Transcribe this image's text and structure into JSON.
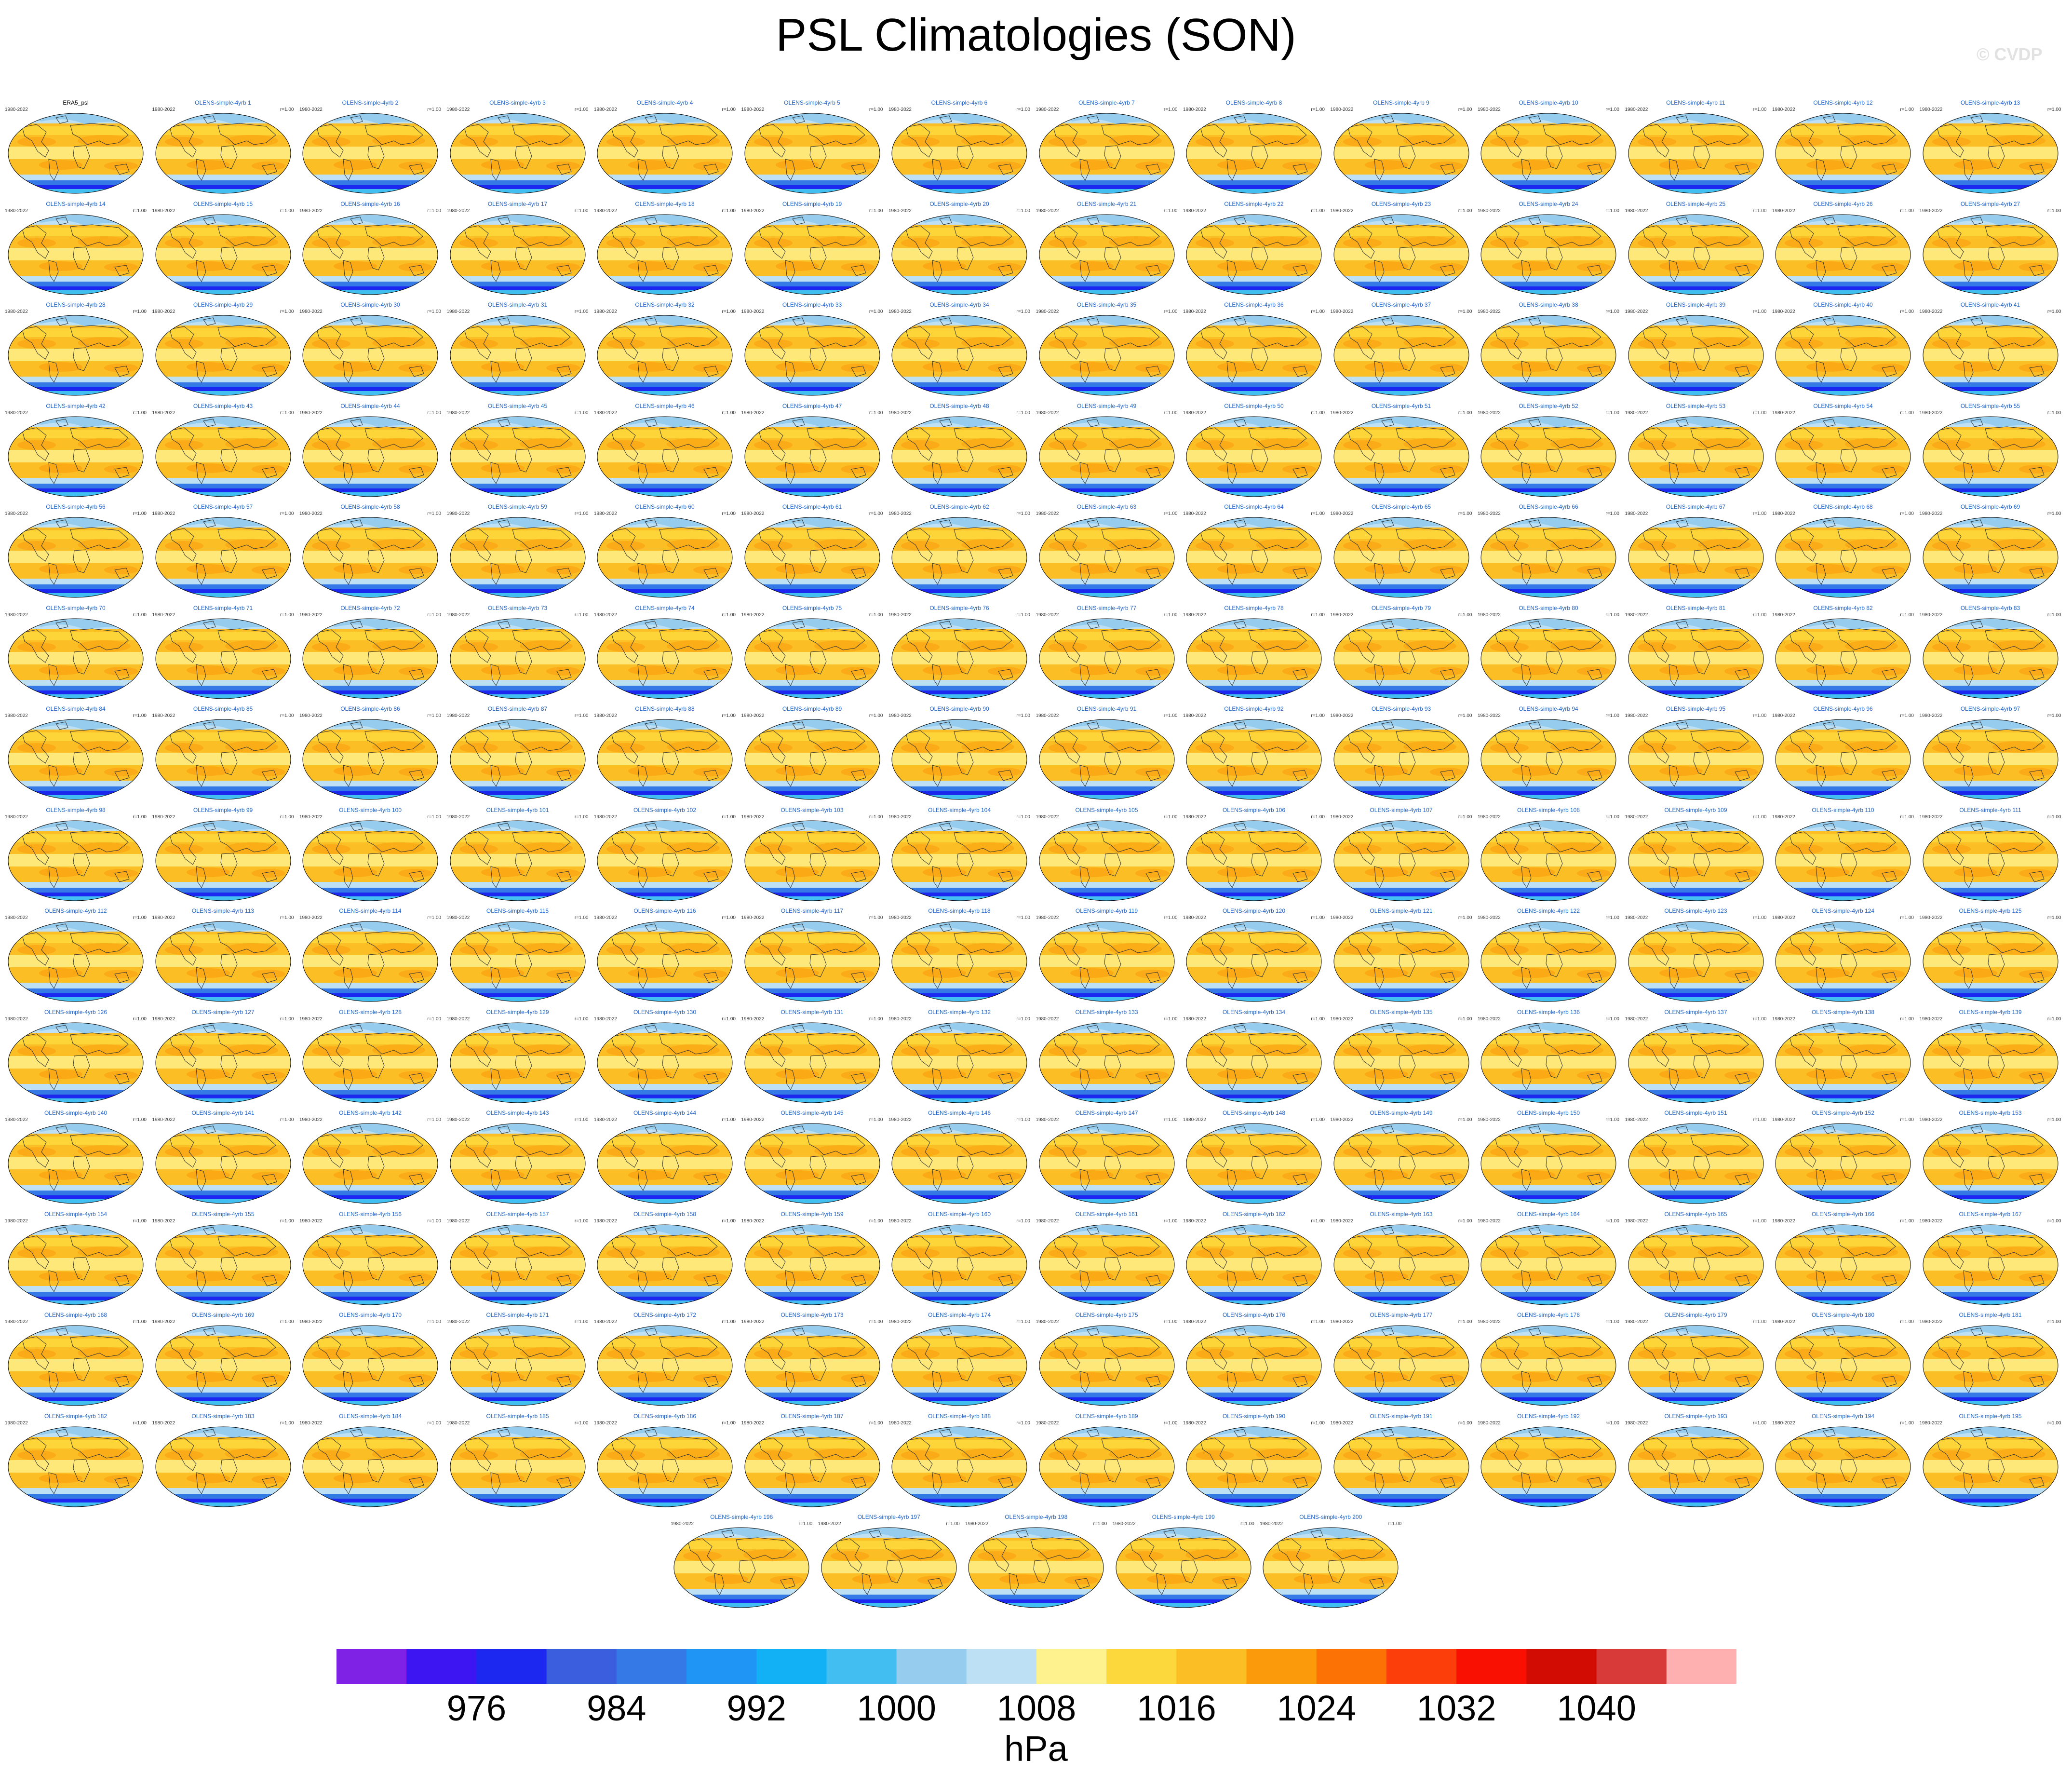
{
  "figure": {
    "title": "PSL Climatologies (SON)",
    "watermark": "© CVDP"
  },
  "panel_common": {
    "years": "1980-2022",
    "ratio_label": "r=1.00"
  },
  "panels": {
    "observation": {
      "title": "ERA5_psl",
      "years": "1980-2022"
    },
    "member_prefix": "OLENS-simple-4yrb",
    "member_count": 200,
    "columns": 14,
    "last_row_panels": 5
  },
  "colorbar": {
    "units": "hPa",
    "colors": [
      "#7f22e6",
      "#3d15f2",
      "#1c28f0",
      "#3a5ede",
      "#3579e6",
      "#1f96f5",
      "#12b0f5",
      "#42bff0",
      "#96cdee",
      "#bde0f4",
      "#fef28f",
      "#fdd83d",
      "#fbbf25",
      "#fb9b0c",
      "#fc7205",
      "#fc3e0a",
      "#fa0f03",
      "#d20c02",
      "#d83a3a",
      "#feb0b0"
    ],
    "labels": [
      "976",
      "984",
      "992",
      "1000",
      "1008",
      "1016",
      "1024",
      "1032",
      "1040"
    ]
  }
}
